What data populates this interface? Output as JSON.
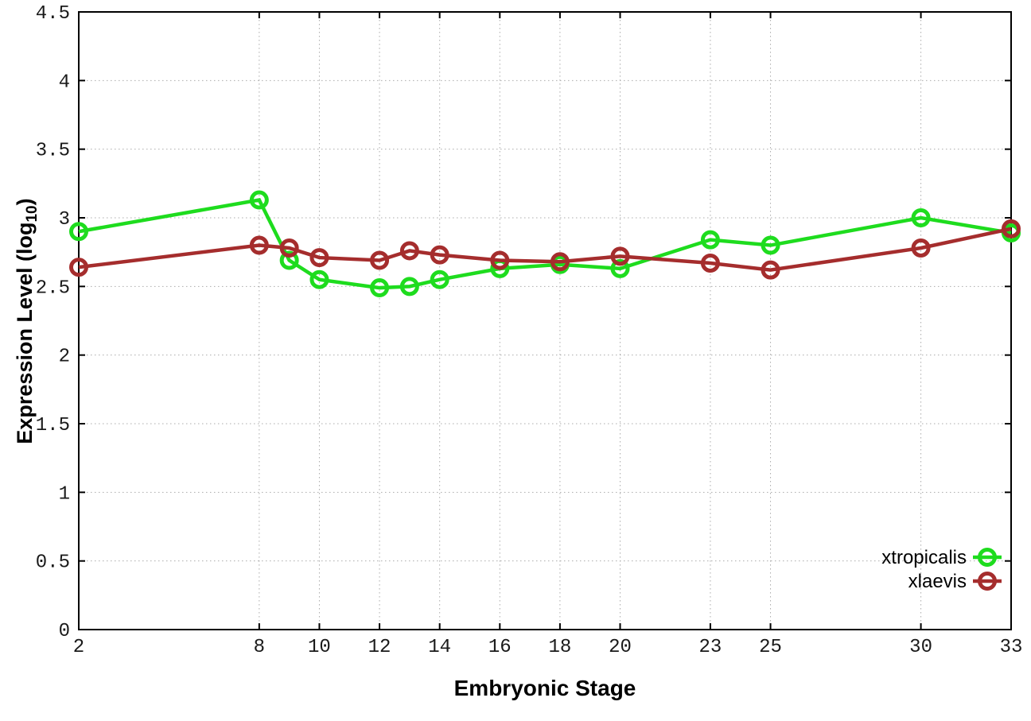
{
  "axis": {
    "ylabel_main": "Expression Level (log",
    "ylabel_sub": "10",
    "ylabel_close": ")",
    "xlabel": "Embryonic Stage"
  },
  "chart_data": {
    "type": "line",
    "title": "",
    "xlabel": "Embryonic Stage",
    "ylabel": "Expression Level (log10)",
    "xlim": [
      2,
      33
    ],
    "ylim": [
      0,
      4.5
    ],
    "grid": true,
    "legend_position": "bottom-right",
    "x": [
      2,
      8,
      9,
      10,
      12,
      13,
      14,
      16,
      18,
      20,
      23,
      25,
      30,
      33
    ],
    "x_ticks": [
      {
        "v": 2,
        "label": "2"
      },
      {
        "v": 8,
        "label": "8"
      },
      {
        "v": 10,
        "label": "10"
      },
      {
        "v": 12,
        "label": "12"
      },
      {
        "v": 14,
        "label": "14"
      },
      {
        "v": 16,
        "label": "16"
      },
      {
        "v": 18,
        "label": "18"
      },
      {
        "v": 20,
        "label": "20"
      },
      {
        "v": 23,
        "label": "23"
      },
      {
        "v": 25,
        "label": "25"
      },
      {
        "v": 30,
        "label": "30"
      },
      {
        "v": 33,
        "label": "33"
      }
    ],
    "y_ticks": [
      {
        "v": 0,
        "label": "0"
      },
      {
        "v": 0.5,
        "label": "0.5"
      },
      {
        "v": 1,
        "label": "1"
      },
      {
        "v": 1.5,
        "label": "1.5"
      },
      {
        "v": 2,
        "label": "2"
      },
      {
        "v": 2.5,
        "label": "2.5"
      },
      {
        "v": 3,
        "label": "3"
      },
      {
        "v": 3.5,
        "label": "3.5"
      },
      {
        "v": 4,
        "label": "4"
      },
      {
        "v": 4.5,
        "label": "4.5"
      }
    ],
    "series": [
      {
        "name": "xtropicalis",
        "label": "xtropicalis",
        "color": "#1EDC1E",
        "values": [
          2.9,
          3.13,
          2.69,
          2.55,
          2.49,
          2.5,
          2.55,
          2.63,
          2.66,
          2.63,
          2.84,
          2.8,
          3.0,
          2.89
        ]
      },
      {
        "name": "xlaevis",
        "label": "xlaevis",
        "color": "#A52D2D",
        "values": [
          2.64,
          2.8,
          2.78,
          2.71,
          2.69,
          2.76,
          2.73,
          2.69,
          2.68,
          2.72,
          2.67,
          2.62,
          2.78,
          2.92
        ]
      }
    ]
  }
}
